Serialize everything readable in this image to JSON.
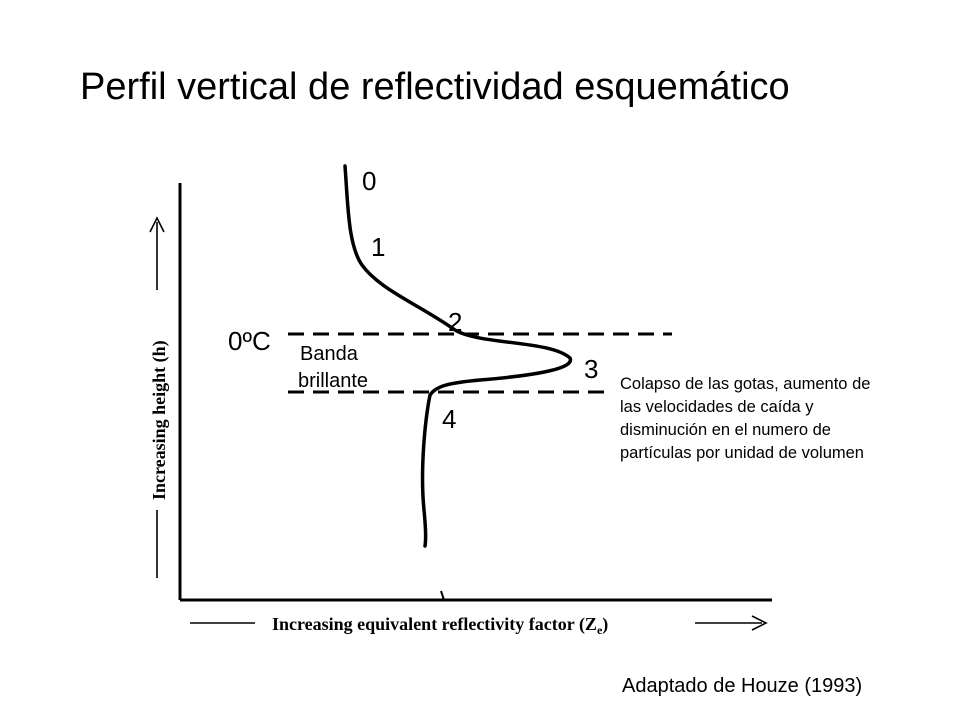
{
  "title": "Perfil vertical de reflectividad esquemático",
  "axes": {
    "y_label": "Increasing height (h)",
    "x_label_main": "Increasing equivalent reflectivity factor (Z",
    "x_label_sub": "e",
    "x_label_end": ")"
  },
  "freezing_level_label": "0ºC",
  "bright_band_label": [
    "Banda",
    "brillante"
  ],
  "points": [
    "0",
    "1",
    "2",
    "3",
    "4"
  ],
  "note_lines": [
    "Colapso de las gotas, aumento de",
    "las velocidades de caída y",
    "disminución en el numero de",
    "partículas por unidad de volumen"
  ],
  "credit": "Adaptado de Houze (1993)"
}
